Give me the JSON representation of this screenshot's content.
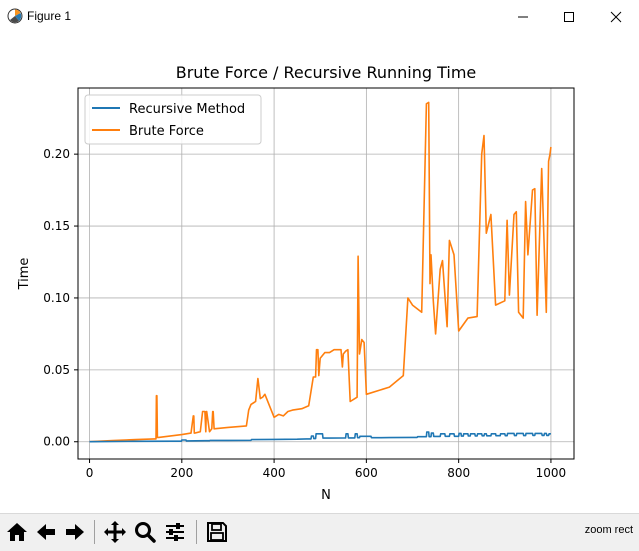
{
  "window": {
    "title": "Figure 1",
    "status": "zoom rect"
  },
  "toolbar": {
    "buttons": [
      "home-icon",
      "back-icon",
      "forward-icon",
      "pan-icon",
      "zoom-icon",
      "configure-subplots-icon",
      "save-icon"
    ]
  },
  "chart_data": {
    "type": "line",
    "title": "Brute Force / Recursive Running Time",
    "xlabel": "N",
    "ylabel": "Time",
    "xlim": [
      -25,
      1050
    ],
    "ylim": [
      -0.012,
      0.246
    ],
    "xticks": [
      "0",
      "200",
      "400",
      "600",
      "800",
      "1000"
    ],
    "yticks": [
      "0.00",
      "0.05",
      "0.10",
      "0.15",
      "0.20"
    ],
    "grid": true,
    "legend_position": "upper left",
    "series": [
      {
        "name": "Recursive Method",
        "color": "#1f77b4",
        "x": [
          0,
          100,
          180,
          199,
          200,
          205,
          209,
          210,
          250,
          260,
          261,
          300,
          350,
          351,
          400,
          450,
          470,
          480,
          481,
          485,
          486,
          490,
          491,
          500,
          505,
          506,
          520,
          550,
          555,
          556,
          560,
          561,
          570,
          575,
          576,
          580,
          581,
          585,
          586,
          600,
          610,
          611,
          650,
          700,
          710,
          711,
          730,
          731,
          735,
          736,
          740,
          741,
          745,
          746,
          760,
          761,
          770,
          771,
          780,
          781,
          790,
          791,
          800,
          801,
          805,
          806,
          810,
          811,
          820,
          821,
          825,
          826,
          835,
          836,
          840,
          841,
          850,
          851,
          855,
          856,
          860,
          861,
          870,
          871,
          880,
          881,
          890,
          891,
          900,
          901,
          905,
          906,
          920,
          921,
          925,
          926,
          940,
          941,
          945,
          946,
          960,
          961,
          965,
          966,
          980,
          981,
          985,
          986,
          990,
          991,
          995,
          996,
          1000
        ],
        "y": [
          0.0,
          0.0003,
          0.0004,
          0.0004,
          0.0012,
          0.0012,
          0.0012,
          0.0006,
          0.0007,
          0.0007,
          0.0009,
          0.0009,
          0.001,
          0.0015,
          0.0016,
          0.0018,
          0.002,
          0.002,
          0.004,
          0.004,
          0.0022,
          0.0022,
          0.0055,
          0.0055,
          0.0055,
          0.0025,
          0.0025,
          0.0026,
          0.0026,
          0.0055,
          0.0055,
          0.0027,
          0.0027,
          0.0027,
          0.0055,
          0.0055,
          0.0028,
          0.0028,
          0.0038,
          0.0038,
          0.0038,
          0.0028,
          0.0029,
          0.003,
          0.003,
          0.0035,
          0.0035,
          0.0068,
          0.0068,
          0.0035,
          0.0035,
          0.006,
          0.006,
          0.0037,
          0.0037,
          0.0055,
          0.0055,
          0.0038,
          0.0038,
          0.0055,
          0.0055,
          0.0038,
          0.0038,
          0.0058,
          0.0058,
          0.0039,
          0.0039,
          0.0055,
          0.0055,
          0.004,
          0.004,
          0.0055,
          0.0055,
          0.004,
          0.004,
          0.0055,
          0.0055,
          0.0041,
          0.0041,
          0.0055,
          0.0055,
          0.0041,
          0.0041,
          0.0055,
          0.0055,
          0.0042,
          0.0042,
          0.0055,
          0.0055,
          0.0042,
          0.0042,
          0.0058,
          0.0058,
          0.0043,
          0.0043,
          0.0058,
          0.0058,
          0.0043,
          0.0043,
          0.0058,
          0.0058,
          0.0044,
          0.0044,
          0.0058,
          0.0058,
          0.0044,
          0.0044,
          0.0058,
          0.0058,
          0.0044,
          0.0044,
          0.0055,
          0.0055
        ]
      },
      {
        "name": "Brute Force",
        "color": "#ff7f0e",
        "x": [
          0,
          50,
          100,
          140,
          144,
          145,
          146,
          147,
          150,
          200,
          220,
          225,
          226,
          227,
          228,
          240,
          245,
          250,
          252,
          253,
          254,
          260,
          265,
          267,
          268,
          270,
          300,
          340,
          345,
          350,
          360,
          365,
          370,
          375,
          380,
          400,
          410,
          420,
          430,
          440,
          460,
          475,
          485,
          490,
          492,
          495,
          497,
          500,
          510,
          520,
          530,
          545,
          548,
          550,
          555,
          560,
          565,
          580,
          582,
          585,
          590,
          595,
          600,
          650,
          680,
          690,
          700,
          720,
          730,
          735,
          738,
          740,
          745,
          750,
          760,
          765,
          775,
          780,
          790,
          800,
          820,
          840,
          850,
          855,
          860,
          870,
          880,
          900,
          905,
          910,
          920,
          925,
          930,
          940,
          945,
          950,
          960,
          965,
          970,
          980,
          990,
          995,
          998,
          1000
        ],
        "y": [
          0.0,
          0.0008,
          0.0015,
          0.002,
          0.002,
          0.032,
          0.032,
          0.003,
          0.003,
          0.005,
          0.006,
          0.018,
          0.018,
          0.006,
          0.006,
          0.007,
          0.021,
          0.021,
          0.007,
          0.021,
          0.021,
          0.007,
          0.009,
          0.021,
          0.021,
          0.009,
          0.01,
          0.011,
          0.022,
          0.026,
          0.028,
          0.044,
          0.03,
          0.031,
          0.033,
          0.017,
          0.019,
          0.018,
          0.021,
          0.022,
          0.023,
          0.025,
          0.045,
          0.045,
          0.064,
          0.064,
          0.046,
          0.058,
          0.062,
          0.062,
          0.064,
          0.064,
          0.052,
          0.061,
          0.063,
          0.064,
          0.028,
          0.031,
          0.129,
          0.061,
          0.071,
          0.069,
          0.033,
          0.038,
          0.046,
          0.1,
          0.095,
          0.09,
          0.235,
          0.236,
          0.11,
          0.13,
          0.098,
          0.075,
          0.12,
          0.126,
          0.08,
          0.14,
          0.13,
          0.077,
          0.086,
          0.087,
          0.2,
          0.213,
          0.145,
          0.158,
          0.095,
          0.098,
          0.154,
          0.102,
          0.158,
          0.16,
          0.09,
          0.086,
          0.167,
          0.13,
          0.175,
          0.176,
          0.088,
          0.19,
          0.09,
          0.195,
          0.2,
          0.205
        ]
      }
    ]
  }
}
